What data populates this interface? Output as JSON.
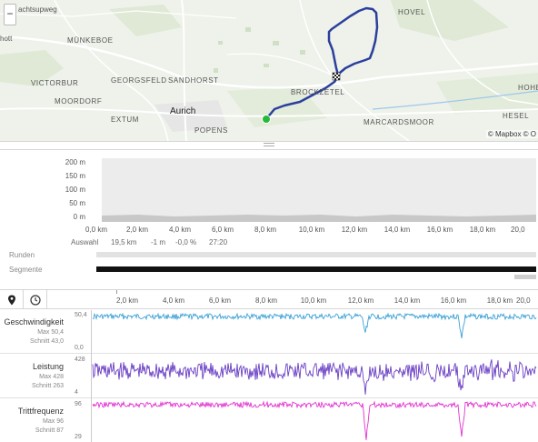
{
  "map": {
    "zoom_out_label": "−",
    "attribution": "© Mapbox © O",
    "labels": [
      {
        "text": "achtsupweg",
        "cls": "small"
      },
      {
        "text": "hott",
        "cls": "small"
      },
      {
        "text": "MÜNKEBOE",
        "cls": ""
      },
      {
        "text": "VICTORBUR",
        "cls": ""
      },
      {
        "text": "GEORGSFELD",
        "cls": ""
      },
      {
        "text": "SANDHORST",
        "cls": ""
      },
      {
        "text": "MOORDORF",
        "cls": ""
      },
      {
        "text": "Aurich",
        "cls": "city"
      },
      {
        "text": "EXTUM",
        "cls": ""
      },
      {
        "text": "POPENS",
        "cls": ""
      },
      {
        "text": "BROCKZETEL",
        "cls": ""
      },
      {
        "text": "HOVEL",
        "cls": ""
      },
      {
        "text": "HOHE",
        "cls": ""
      },
      {
        "text": "HESEL",
        "cls": ""
      },
      {
        "text": "MARCARDSMOOR",
        "cls": ""
      }
    ],
    "route_color": "#2b3f9c",
    "start_color": "#25b83a"
  },
  "elevation": {
    "y_ticks": [
      "200 m",
      "150 m",
      "100 m",
      "50 m",
      "0 m"
    ],
    "x_ticks": [
      "0,0 km",
      "2,0 km",
      "4,0 km",
      "6,0 km",
      "8,0 km",
      "10,0 km",
      "12,0 km",
      "14,0 km",
      "16,0 km",
      "18,0 km",
      "20,0"
    ],
    "selection": {
      "label": "Auswahl",
      "distance": "19,5 km",
      "elevation": "-1 m",
      "grade": "-0,0 %",
      "time": "27:20"
    },
    "runden_label": "Runden",
    "segmente_label": "Segmente"
  },
  "streams": {
    "x_ticks": [
      "2,0 km",
      "4,0 km",
      "6,0 km",
      "8,0 km",
      "10,0 km",
      "12,0 km",
      "14,0 km",
      "16,0 km",
      "18,0 km",
      "20,0"
    ],
    "tabs": [
      {
        "icon": "map-pin-icon"
      },
      {
        "icon": "clock-icon"
      }
    ],
    "rows": [
      {
        "name": "Geschwindigkeit",
        "max": "Max 50,4",
        "avg": "Schnitt 43,0",
        "scale_top": "50,4",
        "scale_bottom": "0,0",
        "color": "#3aa0d6"
      },
      {
        "name": "Leistung",
        "max": "Max 428",
        "avg": "Schnitt 263",
        "scale_top": "428",
        "scale_bottom": "4",
        "color": "#6a3fc4"
      },
      {
        "name": "Trittfrequenz",
        "max": "Max 96",
        "avg": "Schnitt 87",
        "scale_top": "96",
        "scale_bottom": "29",
        "color": "#e032d0"
      }
    ]
  }
}
